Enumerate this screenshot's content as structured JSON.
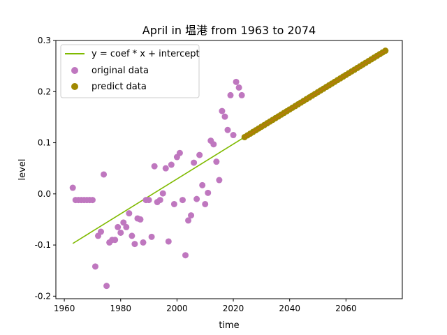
{
  "chart_data": {
    "type": "scatter",
    "title": "April in 塭港 from 1963 to 2074",
    "xlabel": "time",
    "ylabel": "level",
    "xlim": [
      1957,
      2080
    ],
    "ylim": [
      -0.205,
      0.3
    ],
    "x_ticks": [
      1960,
      1980,
      2000,
      2020,
      2040,
      2060
    ],
    "x_tick_labels": [
      "1960",
      "1980",
      "2000",
      "2020",
      "2040",
      "2060"
    ],
    "y_ticks": [
      -0.2,
      -0.1,
      0.0,
      0.1,
      0.2,
      0.3
    ],
    "y_tick_labels": [
      "-0.2",
      "-0.1",
      "0.0",
      "0.1",
      "0.2",
      "0.3"
    ],
    "grid": false,
    "legend_position": "top-left",
    "series": [
      {
        "name": "y = coef * x + intercept",
        "kind": "line",
        "color": "#7fba00",
        "x": [
          1963,
          2024
        ],
        "y": [
          -0.097,
          0.111
        ]
      },
      {
        "name": "original data",
        "kind": "scatter",
        "color": "#bf77bf",
        "x": [
          1963,
          1964,
          1965,
          1966,
          1967,
          1968,
          1969,
          1970,
          1971,
          1972,
          1973,
          1974,
          1975,
          1976,
          1977,
          1978,
          1979,
          1980,
          1981,
          1982,
          1983,
          1984,
          1985,
          1986,
          1987,
          1988,
          1989,
          1990,
          1991,
          1992,
          1993,
          1994,
          1995,
          1996,
          1997,
          1998,
          1999,
          2000,
          2001,
          2002,
          2003,
          2004,
          2005,
          2006,
          2007,
          2008,
          2009,
          2010,
          2011,
          2012,
          2013,
          2014,
          2015,
          2016,
          2017,
          2018,
          2019,
          2020,
          2021,
          2022,
          2023
        ],
        "y": [
          0.012,
          -0.012,
          -0.012,
          -0.012,
          -0.012,
          -0.012,
          -0.012,
          -0.012,
          -0.142,
          -0.082,
          -0.074,
          0.038,
          -0.18,
          -0.095,
          -0.09,
          -0.09,
          -0.065,
          -0.076,
          -0.056,
          -0.065,
          -0.038,
          -0.082,
          -0.098,
          -0.048,
          -0.05,
          -0.095,
          -0.012,
          -0.012,
          -0.084,
          0.054,
          -0.016,
          -0.012,
          0.001,
          0.05,
          -0.093,
          0.057,
          -0.02,
          0.072,
          0.08,
          -0.012,
          -0.12,
          -0.052,
          -0.042,
          0.061,
          -0.01,
          0.076,
          0.017,
          -0.02,
          0.002,
          0.104,
          0.097,
          0.063,
          0.027,
          0.162,
          0.151,
          0.125,
          0.193,
          0.115,
          0.219,
          0.208,
          0.193
        ]
      },
      {
        "name": "predict data",
        "kind": "scatter",
        "color": "#a08800",
        "x_start": 2024,
        "x_end": 2074,
        "y_start": 0.111,
        "y_end": 0.28
      }
    ]
  }
}
